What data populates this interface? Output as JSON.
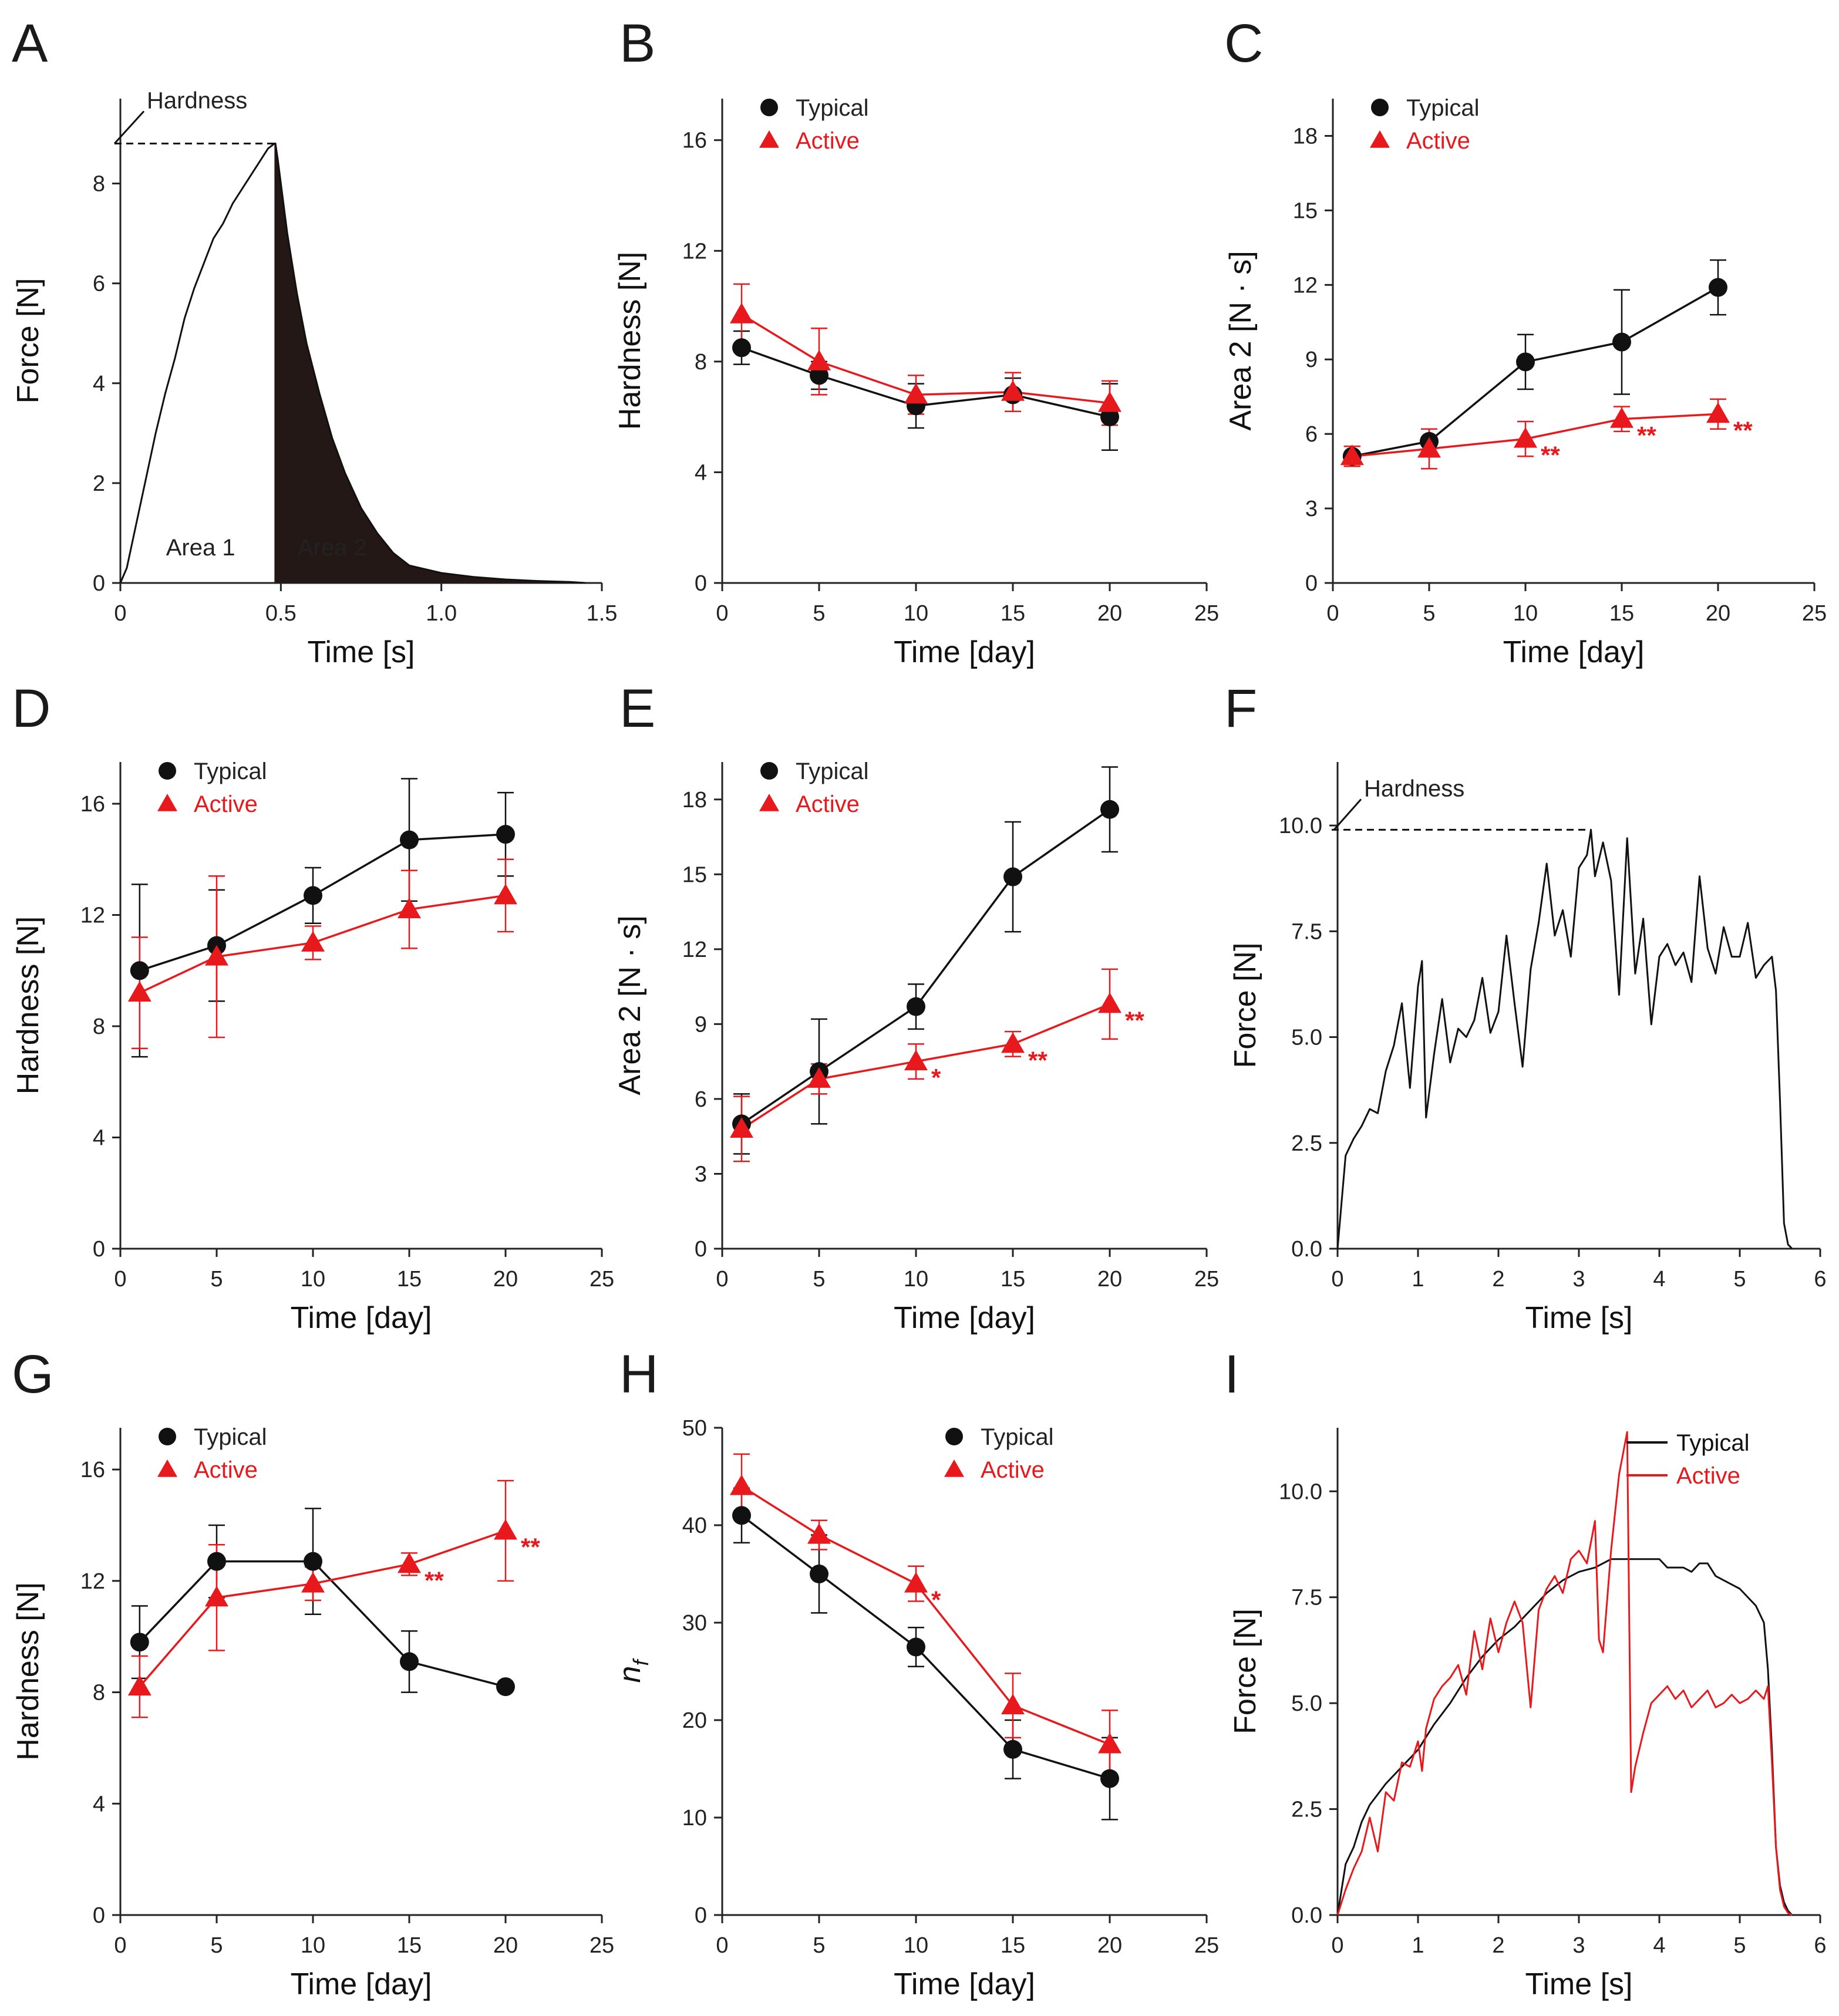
{
  "colors": {
    "typical": "#111111",
    "active": "#e8191d",
    "fill_area2": "#231815",
    "axis": "#222222"
  },
  "chart_data": [
    {
      "panel": "A",
      "type": "line",
      "xlabel": "Time [s]",
      "ylabel": "Force [N]",
      "xlim": [
        0,
        1.5
      ],
      "ylim": [
        0,
        9.7
      ],
      "xticks": [
        0,
        0.5,
        1.0,
        1.5
      ],
      "xtick_labels": [
        "0",
        "0.5",
        "1.0",
        "1.5"
      ],
      "yticks": [
        0,
        2,
        4,
        6,
        8
      ],
      "ytick_labels": [
        "0",
        "2",
        "4",
        "6",
        "8"
      ],
      "hardness_label": "Hardness",
      "hardness_value": 8.8,
      "region_labels": [
        "Area 1",
        "Area 2"
      ],
      "series": [
        {
          "name": "Force",
          "color": "#111111",
          "x": [
            0,
            0.02,
            0.05,
            0.08,
            0.11,
            0.14,
            0.17,
            0.2,
            0.23,
            0.26,
            0.29,
            0.32,
            0.35,
            0.38,
            0.41,
            0.44,
            0.46,
            0.48,
            0.483,
            0.49,
            0.5,
            0.52,
            0.55,
            0.58,
            0.62,
            0.66,
            0.7,
            0.75,
            0.8,
            0.85,
            0.9,
            1.0,
            1.1,
            1.2,
            1.3,
            1.4,
            1.45
          ],
          "y": [
            0,
            0.3,
            1.2,
            2.1,
            3.0,
            3.8,
            4.5,
            5.3,
            5.9,
            6.4,
            6.9,
            7.2,
            7.6,
            7.9,
            8.2,
            8.5,
            8.7,
            8.8,
            8.8,
            8.5,
            8.0,
            7.0,
            5.8,
            4.8,
            3.8,
            2.9,
            2.2,
            1.5,
            1.0,
            0.6,
            0.35,
            0.2,
            0.12,
            0.07,
            0.04,
            0.02,
            0
          ]
        }
      ]
    },
    {
      "panel": "B",
      "type": "line",
      "xlabel": "Time [day]",
      "ylabel": "Hardness [N]",
      "xlim": [
        0,
        25
      ],
      "ylim": [
        0,
        17.5
      ],
      "xticks": [
        0,
        5,
        10,
        15,
        20,
        25
      ],
      "yticks": [
        0,
        4,
        8,
        12,
        16
      ],
      "legend": "top-left",
      "series": [
        {
          "name": "Typical",
          "x": [
            1,
            5,
            10,
            15,
            20
          ],
          "y": [
            8.5,
            7.5,
            6.4,
            6.8,
            6.0
          ],
          "err": [
            0.6,
            0.5,
            0.8,
            0.6,
            1.2
          ]
        },
        {
          "name": "Active",
          "x": [
            1,
            5,
            10,
            15,
            20
          ],
          "y": [
            9.7,
            8.0,
            6.8,
            6.9,
            6.5
          ],
          "err": [
            1.1,
            1.2,
            0.7,
            0.7,
            0.8
          ]
        }
      ],
      "significance": []
    },
    {
      "panel": "C",
      "type": "line",
      "xlabel": "Time [day]",
      "ylabel": "Area 2 [N · s]",
      "xlim": [
        0,
        25
      ],
      "ylim": [
        0,
        19.5
      ],
      "xticks": [
        0,
        5,
        10,
        15,
        20,
        25
      ],
      "yticks": [
        0,
        3,
        6,
        9,
        12,
        15,
        18
      ],
      "legend": "top-left",
      "series": [
        {
          "name": "Typical",
          "x": [
            1,
            5,
            10,
            15,
            20
          ],
          "y": [
            5.1,
            5.7,
            8.9,
            9.7,
            11.9
          ],
          "err": [
            0.4,
            0.5,
            1.1,
            2.1,
            1.1
          ]
        },
        {
          "name": "Active",
          "x": [
            1,
            5,
            10,
            15,
            20
          ],
          "y": [
            5.1,
            5.4,
            5.8,
            6.6,
            6.8
          ],
          "err": [
            0.4,
            0.8,
            0.7,
            0.5,
            0.6
          ]
        }
      ],
      "significance": [
        {
          "x": 10,
          "y": 5.8,
          "label": "**"
        },
        {
          "x": 15,
          "y": 6.6,
          "label": "**"
        },
        {
          "x": 20,
          "y": 6.8,
          "label": "**"
        }
      ]
    },
    {
      "panel": "D",
      "type": "line",
      "xlabel": "Time [day]",
      "ylabel": "Hardness [N]",
      "xlim": [
        0,
        25
      ],
      "ylim": [
        0,
        17.5
      ],
      "xticks": [
        0,
        5,
        10,
        15,
        20,
        25
      ],
      "yticks": [
        0,
        4,
        8,
        12,
        16
      ],
      "legend": "top-left",
      "series": [
        {
          "name": "Typical",
          "x": [
            1,
            5,
            10,
            15,
            20
          ],
          "y": [
            10.0,
            10.9,
            12.7,
            14.7,
            14.9
          ],
          "err": [
            3.1,
            2.0,
            1.0,
            2.2,
            1.5
          ]
        },
        {
          "name": "Active",
          "x": [
            1,
            5,
            10,
            15,
            20
          ],
          "y": [
            9.2,
            10.5,
            11.0,
            12.2,
            12.7
          ],
          "err": [
            2.0,
            2.9,
            0.6,
            1.4,
            1.3
          ]
        }
      ],
      "significance": []
    },
    {
      "panel": "E",
      "type": "line",
      "xlabel": "Time [day]",
      "ylabel": "Area 2 [N · s]",
      "xlim": [
        0,
        25
      ],
      "ylim": [
        0,
        19.5
      ],
      "xticks": [
        0,
        5,
        10,
        15,
        20,
        25
      ],
      "yticks": [
        0,
        3,
        6,
        9,
        12,
        15,
        18
      ],
      "legend": "top-left",
      "series": [
        {
          "name": "Typical",
          "x": [
            1,
            5,
            10,
            15,
            20
          ],
          "y": [
            5.0,
            7.1,
            9.7,
            14.9,
            17.6
          ],
          "err": [
            1.2,
            2.1,
            0.9,
            2.2,
            1.7
          ]
        },
        {
          "name": "Active",
          "x": [
            1,
            5,
            10,
            15,
            20
          ],
          "y": [
            4.8,
            6.8,
            7.5,
            8.2,
            9.8
          ],
          "err": [
            1.3,
            0.6,
            0.7,
            0.5,
            1.4
          ]
        }
      ],
      "significance": [
        {
          "x": 10,
          "y": 7.5,
          "label": "*"
        },
        {
          "x": 15,
          "y": 8.2,
          "label": "**"
        },
        {
          "x": 20,
          "y": 9.8,
          "label": "**"
        }
      ]
    },
    {
      "panel": "F",
      "type": "line",
      "xlabel": "Time [s]",
      "ylabel": "Force [N]",
      "xlim": [
        0,
        6
      ],
      "ylim": [
        0,
        11.5
      ],
      "xticks": [
        0,
        1,
        2,
        3,
        4,
        5,
        6
      ],
      "yticks": [
        0,
        2.5,
        5.0,
        7.5,
        10.0
      ],
      "ytick_labels": [
        "0.0",
        "2.5",
        "5.0",
        "7.5",
        "10.0"
      ],
      "hardness_label": "Hardness",
      "hardness_value": 9.9,
      "hardness_time": 3.15,
      "series": [
        {
          "name": "Force",
          "color": "#111111",
          "x": [
            0,
            0.1,
            0.2,
            0.3,
            0.4,
            0.5,
            0.6,
            0.7,
            0.8,
            0.9,
            1.0,
            1.05,
            1.1,
            1.2,
            1.3,
            1.4,
            1.5,
            1.6,
            1.7,
            1.8,
            1.9,
            2.0,
            2.1,
            2.2,
            2.3,
            2.4,
            2.5,
            2.6,
            2.7,
            2.8,
            2.9,
            3.0,
            3.1,
            3.15,
            3.2,
            3.3,
            3.4,
            3.5,
            3.6,
            3.7,
            3.8,
            3.9,
            4.0,
            4.1,
            4.2,
            4.3,
            4.4,
            4.5,
            4.6,
            4.7,
            4.8,
            4.9,
            5.0,
            5.1,
            5.2,
            5.3,
            5.4,
            5.45,
            5.5,
            5.55,
            5.6,
            5.65
          ],
          "y": [
            0,
            2.2,
            2.6,
            2.9,
            3.3,
            3.2,
            4.2,
            4.8,
            5.8,
            3.8,
            6.2,
            6.8,
            3.1,
            4.6,
            5.9,
            4.4,
            5.2,
            5.0,
            5.4,
            6.4,
            5.1,
            5.6,
            7.4,
            5.8,
            4.3,
            6.6,
            7.7,
            9.1,
            7.4,
            8.0,
            6.9,
            9.0,
            9.3,
            9.9,
            8.8,
            9.6,
            8.7,
            6.0,
            9.7,
            6.5,
            7.8,
            5.3,
            6.9,
            7.2,
            6.7,
            7.0,
            6.3,
            8.8,
            7.1,
            6.5,
            7.6,
            6.9,
            6.9,
            7.7,
            6.4,
            6.7,
            6.9,
            6.1,
            3.5,
            0.6,
            0.1,
            0
          ]
        }
      ]
    },
    {
      "panel": "G",
      "type": "line",
      "xlabel": "Time [day]",
      "ylabel": "Hardness [N]",
      "xlim": [
        0,
        25
      ],
      "ylim": [
        0,
        17.5
      ],
      "xticks": [
        0,
        5,
        10,
        15,
        20,
        25
      ],
      "yticks": [
        0,
        4,
        8,
        12,
        16
      ],
      "legend": "top-left",
      "series": [
        {
          "name": "Typical",
          "x": [
            1,
            5,
            10,
            15,
            20
          ],
          "y": [
            9.8,
            12.7,
            12.7,
            9.1,
            8.2
          ],
          "err": [
            1.3,
            1.3,
            1.9,
            1.1,
            0.1
          ]
        },
        {
          "name": "Active",
          "x": [
            1,
            5,
            10,
            15,
            20
          ],
          "y": [
            8.2,
            11.4,
            11.9,
            12.6,
            13.8
          ],
          "err": [
            1.1,
            1.9,
            0.6,
            0.4,
            1.8
          ]
        }
      ],
      "significance": [
        {
          "x": 15,
          "y": 12.6,
          "label": "**"
        },
        {
          "x": 20,
          "y": 13.8,
          "label": "**"
        }
      ]
    },
    {
      "panel": "H",
      "type": "line",
      "xlabel": "Time [day]",
      "ylabel": "nf",
      "ylabel_main": "n",
      "ylabel_sub": "f",
      "xlim": [
        0,
        25
      ],
      "ylim": [
        0,
        50
      ],
      "xticks": [
        0,
        5,
        10,
        15,
        20,
        25
      ],
      "yticks": [
        0,
        10,
        20,
        30,
        40,
        50
      ],
      "legend": "top-right",
      "series": [
        {
          "name": "Typical",
          "x": [
            1,
            5,
            10,
            15,
            20
          ],
          "y": [
            41.0,
            35.0,
            27.5,
            17.0,
            14.0
          ],
          "err": [
            2.8,
            4.0,
            2.0,
            3.0,
            4.2
          ]
        },
        {
          "name": "Active",
          "x": [
            1,
            5,
            10,
            15,
            20
          ],
          "y": [
            44.0,
            39.0,
            34.0,
            21.5,
            17.5
          ],
          "err": [
            3.3,
            1.5,
            1.8,
            3.3,
            3.5
          ]
        }
      ],
      "significance": [
        {
          "x": 10,
          "y": 34.0,
          "label": "*"
        }
      ]
    },
    {
      "panel": "I",
      "type": "line",
      "xlabel": "Time [s]",
      "ylabel": "Force [N]",
      "xlim": [
        0,
        6
      ],
      "ylim": [
        0,
        11.5
      ],
      "xticks": [
        0,
        1,
        2,
        3,
        4,
        5,
        6
      ],
      "yticks": [
        0,
        2.5,
        5.0,
        7.5,
        10.0
      ],
      "ytick_labels": [
        "0.0",
        "2.5",
        "5.0",
        "7.5",
        "10.0"
      ],
      "legend": "top-right",
      "series": [
        {
          "name": "Typical",
          "x": [
            0,
            0.1,
            0.2,
            0.3,
            0.4,
            0.6,
            0.8,
            1.0,
            1.2,
            1.4,
            1.6,
            1.8,
            2.0,
            2.2,
            2.4,
            2.6,
            2.8,
            3.0,
            3.2,
            3.4,
            3.6,
            3.8,
            4.0,
            4.1,
            4.2,
            4.3,
            4.4,
            4.5,
            4.6,
            4.7,
            4.8,
            5.0,
            5.2,
            5.3,
            5.35,
            5.4,
            5.45,
            5.5,
            5.55,
            5.6,
            5.65
          ],
          "y": [
            0,
            1.2,
            1.6,
            2.2,
            2.6,
            3.1,
            3.5,
            3.9,
            4.5,
            5.0,
            5.6,
            6.1,
            6.5,
            6.8,
            7.2,
            7.6,
            7.9,
            8.1,
            8.2,
            8.4,
            8.4,
            8.4,
            8.4,
            8.2,
            8.2,
            8.2,
            8.1,
            8.3,
            8.3,
            8.0,
            7.9,
            7.7,
            7.3,
            6.9,
            5.8,
            3.9,
            1.6,
            0.7,
            0.3,
            0.1,
            0
          ]
        },
        {
          "name": "Active",
          "x": [
            0,
            0.1,
            0.2,
            0.3,
            0.4,
            0.5,
            0.6,
            0.7,
            0.8,
            0.9,
            1.0,
            1.05,
            1.1,
            1.2,
            1.3,
            1.4,
            1.5,
            1.6,
            1.7,
            1.8,
            1.9,
            2.0,
            2.1,
            2.2,
            2.3,
            2.4,
            2.5,
            2.6,
            2.7,
            2.8,
            2.9,
            3.0,
            3.1,
            3.2,
            3.25,
            3.3,
            3.4,
            3.5,
            3.6,
            3.65,
            3.7,
            3.8,
            3.9,
            4.0,
            4.1,
            4.2,
            4.3,
            4.4,
            4.5,
            4.6,
            4.7,
            4.8,
            4.9,
            5.0,
            5.1,
            5.2,
            5.3,
            5.35,
            5.4,
            5.45,
            5.5,
            5.55,
            5.6,
            5.65
          ],
          "y": [
            0,
            0.6,
            1.1,
            1.5,
            2.3,
            1.5,
            2.9,
            2.7,
            3.6,
            3.5,
            4.1,
            3.4,
            4.4,
            5.1,
            5.4,
            5.6,
            5.9,
            5.2,
            6.7,
            5.8,
            7.0,
            6.2,
            6.9,
            7.4,
            6.9,
            4.9,
            7.2,
            7.7,
            8.0,
            7.6,
            8.4,
            8.6,
            8.3,
            9.3,
            6.5,
            6.2,
            8.6,
            10.4,
            11.4,
            2.9,
            3.5,
            4.3,
            5.0,
            5.2,
            5.4,
            5.1,
            5.3,
            4.9,
            5.1,
            5.3,
            4.9,
            5.0,
            5.2,
            5.0,
            5.1,
            5.3,
            5.1,
            5.4,
            3.6,
            1.6,
            0.6,
            0.2,
            0.05,
            0
          ]
        }
      ]
    }
  ]
}
